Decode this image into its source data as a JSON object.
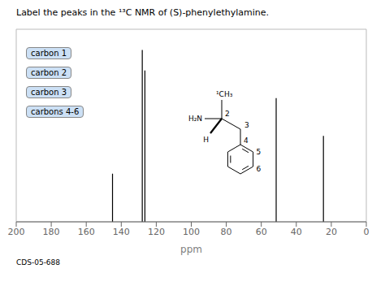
{
  "chart_data": {
    "type": "spectrum",
    "title": "Label the peaks in the ¹³C NMR of (S)-phenylethylamine.",
    "xlabel": "ppm",
    "x": [
      145.0,
      128.0,
      126.5,
      51.5,
      24.5
    ],
    "values": [
      0.28,
      1.0,
      0.88,
      0.72,
      0.5
    ],
    "color": "#000000",
    "xlim": [
      200,
      0
    ],
    "ylim": [
      0,
      1.12
    ],
    "xticks": [
      200,
      180,
      160,
      140,
      120,
      100,
      80,
      60,
      40,
      20,
      0
    ],
    "tick_labels": "x",
    "annotations": [
      "carbon 1",
      "carbon 2",
      "carbon 3",
      "carbons 4-6",
      "CDS-05-688",
      "¹CH₃",
      "2",
      "H",
      "H₂N",
      "3",
      "4",
      "5",
      "6"
    ]
  }
}
